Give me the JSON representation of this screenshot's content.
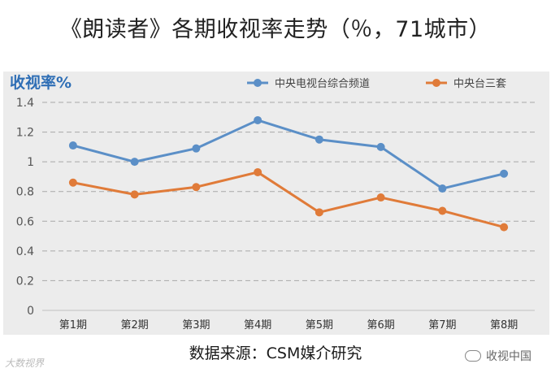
{
  "title": "《朗读者》各期收视率走势（％，71城市）",
  "source": "数据来源：CSM媒介研究",
  "watermark_left": "大数视界",
  "watermark_right": "收视中国",
  "chart_data": {
    "type": "line",
    "ylabel": "收视率%",
    "categories": [
      "第1期",
      "第2期",
      "第3期",
      "第4期",
      "第5期",
      "第6期",
      "第7期",
      "第8期"
    ],
    "ylim": [
      0,
      1.4
    ],
    "yticks": [
      "0",
      "0.2",
      "0.4",
      "0.6",
      "0.8",
      "1",
      "1.2",
      "1.4"
    ],
    "grid": true,
    "legend_position": "top",
    "series": [
      {
        "name": "中央电视台综合频道",
        "color": "#5b8fc7",
        "values": [
          1.11,
          1.0,
          1.09,
          1.28,
          1.15,
          1.1,
          0.82,
          0.92
        ]
      },
      {
        "name": "中央台三套",
        "color": "#e07b39",
        "values": [
          0.86,
          0.78,
          0.83,
          0.93,
          0.66,
          0.76,
          0.67,
          0.56
        ]
      }
    ]
  }
}
